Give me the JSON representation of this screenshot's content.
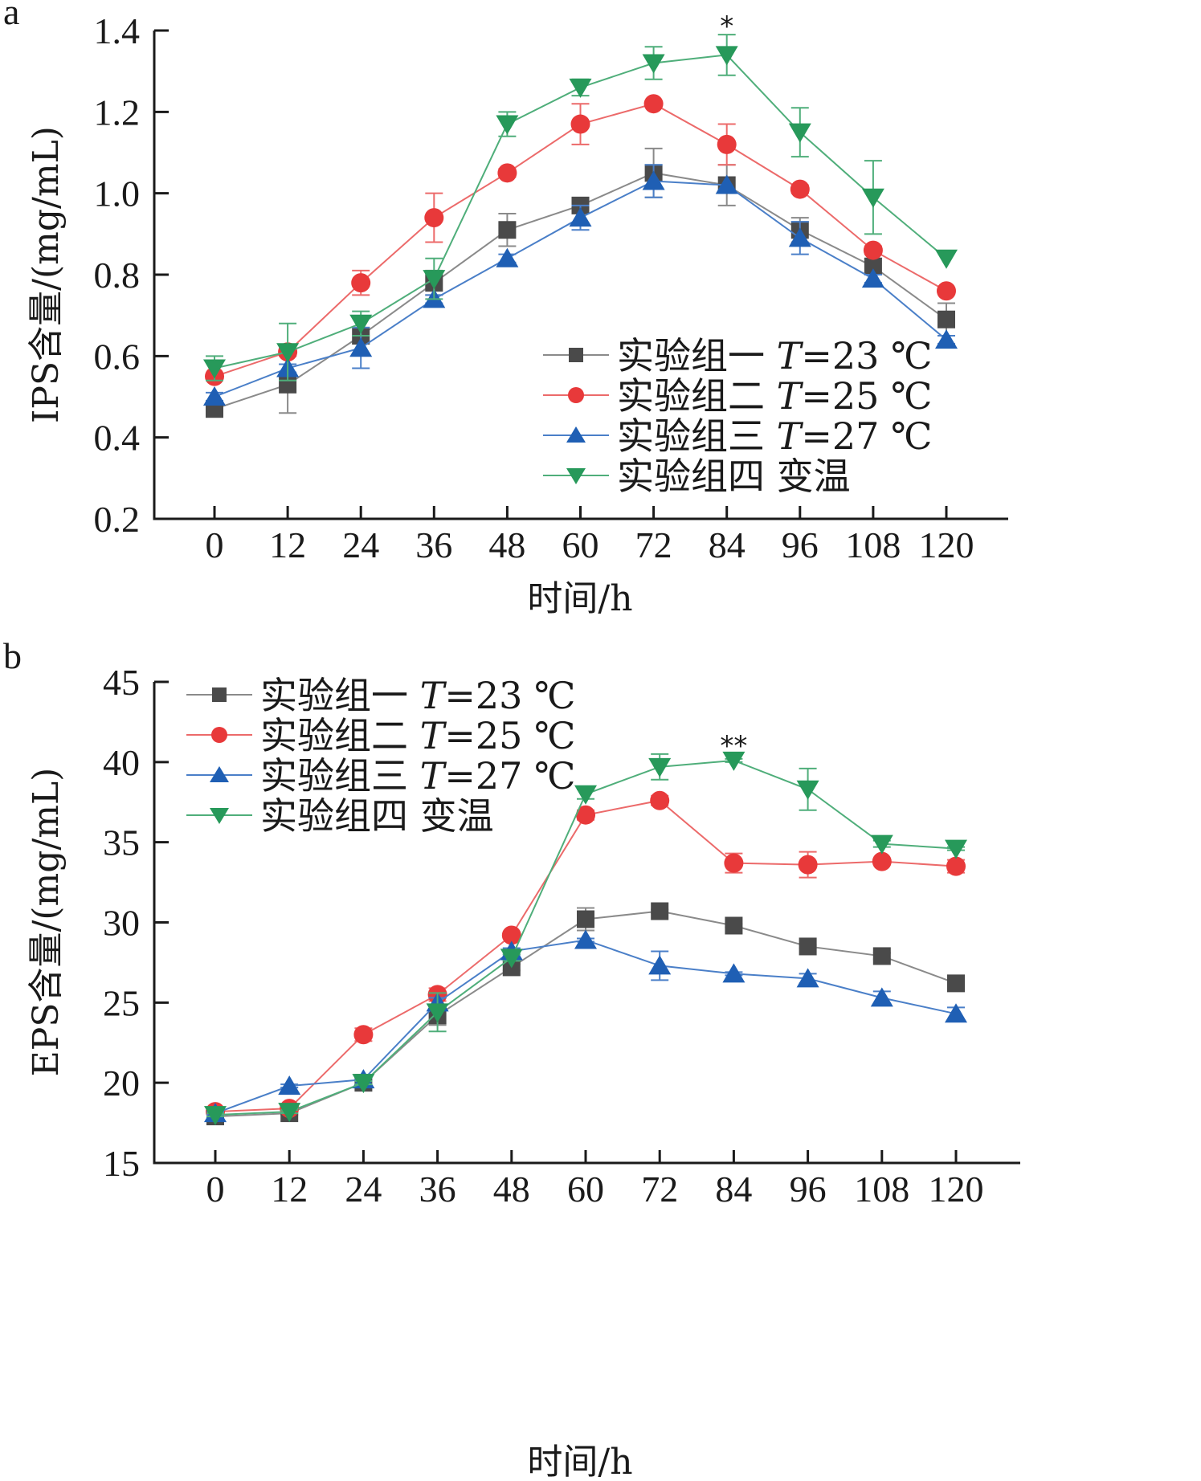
{
  "chart_data": [
    {
      "panel": "a",
      "type": "line",
      "title": "",
      "xlabel": "时间/h",
      "ylabel": "IPS含量/(mg/mL)",
      "x": [
        0,
        12,
        24,
        36,
        48,
        60,
        72,
        84,
        96,
        108,
        120
      ],
      "xticks": [
        "0",
        "12",
        "24",
        "36",
        "48",
        "60",
        "72",
        "84",
        "96",
        "108",
        "120"
      ],
      "ylim": [
        0.2,
        1.4
      ],
      "yticks": [
        "0.2",
        "0.4",
        "0.6",
        "0.8",
        "1.0",
        "1.2",
        "1.4"
      ],
      "legend_position": "center-right",
      "grid": false,
      "series": [
        {
          "name": "实验组一 T=23 ℃",
          "label_main": "实验组一 ",
          "label_t": "T",
          "label_rest": "=23 ℃",
          "color": "#4a4a4a",
          "line_color": "#8a8a8a",
          "marker": "square",
          "values": [
            0.47,
            0.53,
            0.65,
            0.78,
            0.91,
            0.97,
            1.05,
            1.02,
            0.91,
            0.82,
            0.69
          ],
          "errors": [
            0.0,
            0.07,
            0.02,
            0.03,
            0.04,
            0.01,
            0.06,
            0.05,
            0.03,
            0.02,
            0.04
          ]
        },
        {
          "name": "实验组二 T=25 ℃",
          "label_main": "实验组二 ",
          "label_t": "T",
          "label_rest": "=25 ℃",
          "color": "#e8393a",
          "line_color": "#ec6a6a",
          "marker": "circle",
          "values": [
            0.55,
            0.61,
            0.78,
            0.94,
            1.05,
            1.17,
            1.22,
            1.12,
            1.01,
            0.86,
            0.76
          ],
          "errors": [
            0.0,
            0.01,
            0.03,
            0.06,
            0.01,
            0.05,
            0.0,
            0.05,
            0.01,
            0.01,
            0.0
          ]
        },
        {
          "name": "实验组三 T=27 ℃",
          "label_main": "实验组三 ",
          "label_t": "T",
          "label_rest": "=27 ℃",
          "color": "#1f5fb4",
          "line_color": "#4a7fc8",
          "marker": "triangle-up",
          "values": [
            0.5,
            0.57,
            0.62,
            0.74,
            0.84,
            0.94,
            1.03,
            1.02,
            0.89,
            0.79,
            0.64
          ],
          "errors": [
            0.01,
            0.01,
            0.05,
            0.01,
            0.01,
            0.03,
            0.04,
            0.0,
            0.04,
            0.01,
            0.01
          ]
        },
        {
          "name": "实验组四 变温",
          "label_main": "实验组四 变温",
          "label_t": "",
          "label_rest": "",
          "color": "#27995a",
          "line_color": "#4fae7a",
          "marker": "triangle-down",
          "values": [
            0.57,
            0.61,
            0.68,
            0.79,
            1.17,
            1.26,
            1.32,
            1.34,
            1.15,
            0.99,
            0.84
          ],
          "errors": [
            0.03,
            0.07,
            0.03,
            0.05,
            0.03,
            0.02,
            0.04,
            0.05,
            0.06,
            0.09,
            0.0
          ]
        }
      ],
      "annotations": [
        {
          "text": "*",
          "x": 84
        }
      ]
    },
    {
      "panel": "b",
      "type": "line",
      "title": "",
      "xlabel": "时间/h",
      "ylabel": "EPS含量/(mg/mL)",
      "x": [
        0,
        12,
        24,
        36,
        48,
        60,
        72,
        84,
        96,
        108,
        120
      ],
      "xticks": [
        "0",
        "12",
        "24",
        "36",
        "48",
        "60",
        "72",
        "84",
        "96",
        "108",
        "120"
      ],
      "ylim": [
        15,
        45
      ],
      "yticks": [
        "15",
        "20",
        "25",
        "30",
        "35",
        "40",
        "45"
      ],
      "legend_position": "top-left",
      "grid": false,
      "series": [
        {
          "name": "实验组一 T=23 ℃",
          "label_main": "实验组一 ",
          "label_t": "T",
          "label_rest": "=23 ℃",
          "color": "#4a4a4a",
          "line_color": "#8a8a8a",
          "marker": "square",
          "values": [
            17.9,
            18.1,
            20.0,
            24.2,
            27.2,
            30.2,
            30.7,
            29.8,
            28.5,
            27.9,
            26.2
          ],
          "errors": [
            0.1,
            0.1,
            0.1,
            0.6,
            0.2,
            0.7,
            0.1,
            0.1,
            0.1,
            0.2,
            0.3
          ]
        },
        {
          "name": "实验组二 T=25 ℃",
          "label_main": "实验组二 ",
          "label_t": "T",
          "label_rest": "=25 ℃",
          "color": "#e8393a",
          "line_color": "#ec6a6a",
          "marker": "circle",
          "values": [
            18.2,
            18.4,
            23.0,
            25.5,
            29.2,
            36.7,
            37.6,
            33.7,
            33.6,
            33.8,
            33.5
          ],
          "errors": [
            0.1,
            0.1,
            0.4,
            0.4,
            0.1,
            0.3,
            0.3,
            0.6,
            0.8,
            0.1,
            0.4
          ]
        },
        {
          "name": "实验组三 T=27 ℃",
          "label_main": "实验组三 ",
          "label_t": "T",
          "label_rest": "=27 ℃",
          "color": "#1f5fb4",
          "line_color": "#4a7fc8",
          "marker": "triangle-up",
          "values": [
            18.1,
            19.8,
            20.2,
            25.0,
            28.2,
            28.9,
            27.3,
            26.8,
            26.5,
            25.3,
            24.3
          ],
          "errors": [
            0.1,
            0.1,
            0.1,
            0.3,
            0.2,
            0.1,
            0.9,
            0.1,
            0.3,
            0.4,
            0.4
          ]
        },
        {
          "name": "实验组四 变温",
          "label_main": "实验组四 变温",
          "label_t": "",
          "label_rest": "",
          "color": "#27995a",
          "line_color": "#4fae7a",
          "marker": "triangle-down",
          "values": [
            18.0,
            18.2,
            20.0,
            24.4,
            27.8,
            38.0,
            39.7,
            40.1,
            38.3,
            34.9,
            34.6
          ],
          "errors": [
            0.1,
            0.1,
            0.1,
            1.2,
            0.2,
            0.3,
            0.8,
            0.1,
            1.3,
            0.2,
            0.1
          ]
        }
      ],
      "annotations": [
        {
          "text": "**",
          "x": 84
        }
      ]
    }
  ]
}
